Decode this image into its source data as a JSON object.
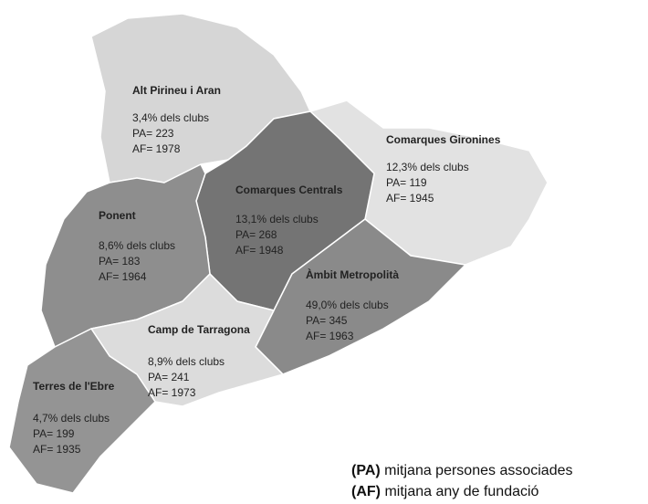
{
  "regions": [
    {
      "name": "Alt Pirineu i Aran",
      "share": "3,4% dels clubs",
      "pa": "PA= 223",
      "af": "AF= 1978"
    },
    {
      "name": "Comarques Gironines",
      "share": "12,3% dels clubs",
      "pa": "PA= 119",
      "af": "AF= 1945"
    },
    {
      "name": "Comarques Centrals",
      "share": "13,1% dels clubs",
      "pa": "PA= 268",
      "af": "AF= 1948"
    },
    {
      "name": "Ponent",
      "share": "8,6% dels clubs",
      "pa": "PA= 183",
      "af": "AF= 1964"
    },
    {
      "name": "Àmbit Metropolità",
      "share": "49,0% dels clubs",
      "pa": "PA= 345",
      "af": "AF= 1963"
    },
    {
      "name": "Camp de Tarragona",
      "share": "8,9% dels clubs",
      "pa": "PA= 241",
      "af": "AF= 1973"
    },
    {
      "name": "Terres de l'Ebre",
      "share": "4,7% dels clubs",
      "pa": "PA= 199",
      "af": "AF= 1935"
    }
  ],
  "legend": [
    {
      "abbr": "(PA)",
      "text": "mitjana persones associades"
    },
    {
      "abbr": "(AF)",
      "text": "mitjana any de fundació"
    }
  ]
}
